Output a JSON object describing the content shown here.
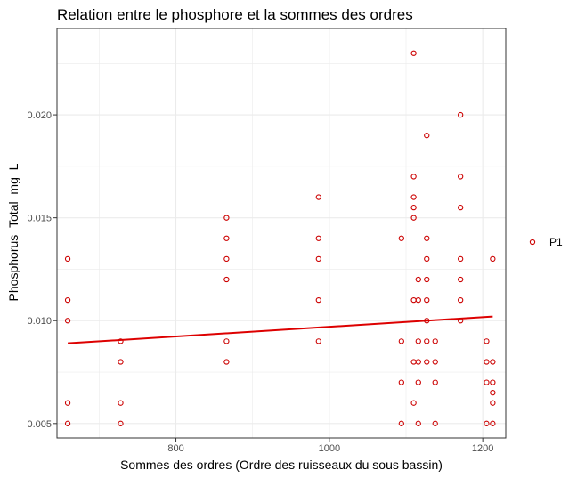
{
  "chart_data": {
    "type": "scatter",
    "title": "Relation entre le phosphore et la sommes des ordres",
    "xlabel": "Sommes des ordres (Ordre des ruisseaux du sous bassin)",
    "ylabel": "Phosphorus_Total_mg_L",
    "xlim": [
      645,
      1230
    ],
    "ylim": [
      0.0043,
      0.0242
    ],
    "x_ticks": [
      800,
      1000,
      1200
    ],
    "x_tick_labels": [
      "800",
      "1000",
      "1200"
    ],
    "y_ticks": [
      0.005,
      0.01,
      0.015,
      0.02
    ],
    "y_tick_labels": [
      "0.005",
      "0.010",
      "0.015",
      "0.020"
    ],
    "grid": true,
    "legend_position": "right",
    "colors": {
      "points": "#cc0000",
      "trend": "#dd0000",
      "grid": "#ebebeb",
      "panel_border": "#333333"
    },
    "series": [
      {
        "name": "P1",
        "points": [
          [
            659,
            0.013
          ],
          [
            659,
            0.011
          ],
          [
            659,
            0.01
          ],
          [
            659,
            0.006
          ],
          [
            659,
            0.005
          ],
          [
            728,
            0.009
          ],
          [
            728,
            0.008
          ],
          [
            728,
            0.006
          ],
          [
            728,
            0.005
          ],
          [
            866,
            0.015
          ],
          [
            866,
            0.014
          ],
          [
            866,
            0.013
          ],
          [
            866,
            0.012
          ],
          [
            866,
            0.009
          ],
          [
            866,
            0.008
          ],
          [
            986,
            0.016
          ],
          [
            986,
            0.014
          ],
          [
            986,
            0.013
          ],
          [
            986,
            0.011
          ],
          [
            986,
            0.009
          ],
          [
            1094,
            0.014
          ],
          [
            1094,
            0.009
          ],
          [
            1094,
            0.007
          ],
          [
            1094,
            0.005
          ],
          [
            1110,
            0.023
          ],
          [
            1110,
            0.017
          ],
          [
            1110,
            0.016
          ],
          [
            1110,
            0.0155
          ],
          [
            1110,
            0.015
          ],
          [
            1110,
            0.011
          ],
          [
            1110,
            0.008
          ],
          [
            1110,
            0.006
          ],
          [
            1116,
            0.012
          ],
          [
            1116,
            0.011
          ],
          [
            1116,
            0.009
          ],
          [
            1116,
            0.008
          ],
          [
            1116,
            0.007
          ],
          [
            1116,
            0.005
          ],
          [
            1127,
            0.019
          ],
          [
            1127,
            0.014
          ],
          [
            1127,
            0.013
          ],
          [
            1127,
            0.012
          ],
          [
            1127,
            0.011
          ],
          [
            1127,
            0.01
          ],
          [
            1127,
            0.009
          ],
          [
            1127,
            0.008
          ],
          [
            1138,
            0.009
          ],
          [
            1138,
            0.008
          ],
          [
            1138,
            0.007
          ],
          [
            1138,
            0.005
          ],
          [
            1171,
            0.02
          ],
          [
            1171,
            0.017
          ],
          [
            1171,
            0.0155
          ],
          [
            1171,
            0.013
          ],
          [
            1171,
            0.012
          ],
          [
            1171,
            0.011
          ],
          [
            1171,
            0.01
          ],
          [
            1205,
            0.009
          ],
          [
            1205,
            0.008
          ],
          [
            1205,
            0.007
          ],
          [
            1205,
            0.005
          ],
          [
            1213,
            0.013
          ],
          [
            1213,
            0.008
          ],
          [
            1213,
            0.007
          ],
          [
            1213,
            0.0065
          ],
          [
            1213,
            0.006
          ],
          [
            1213,
            0.005
          ]
        ]
      }
    ],
    "trend_line": {
      "x": [
        659,
        1213
      ],
      "y": [
        0.0089,
        0.0102
      ]
    }
  }
}
